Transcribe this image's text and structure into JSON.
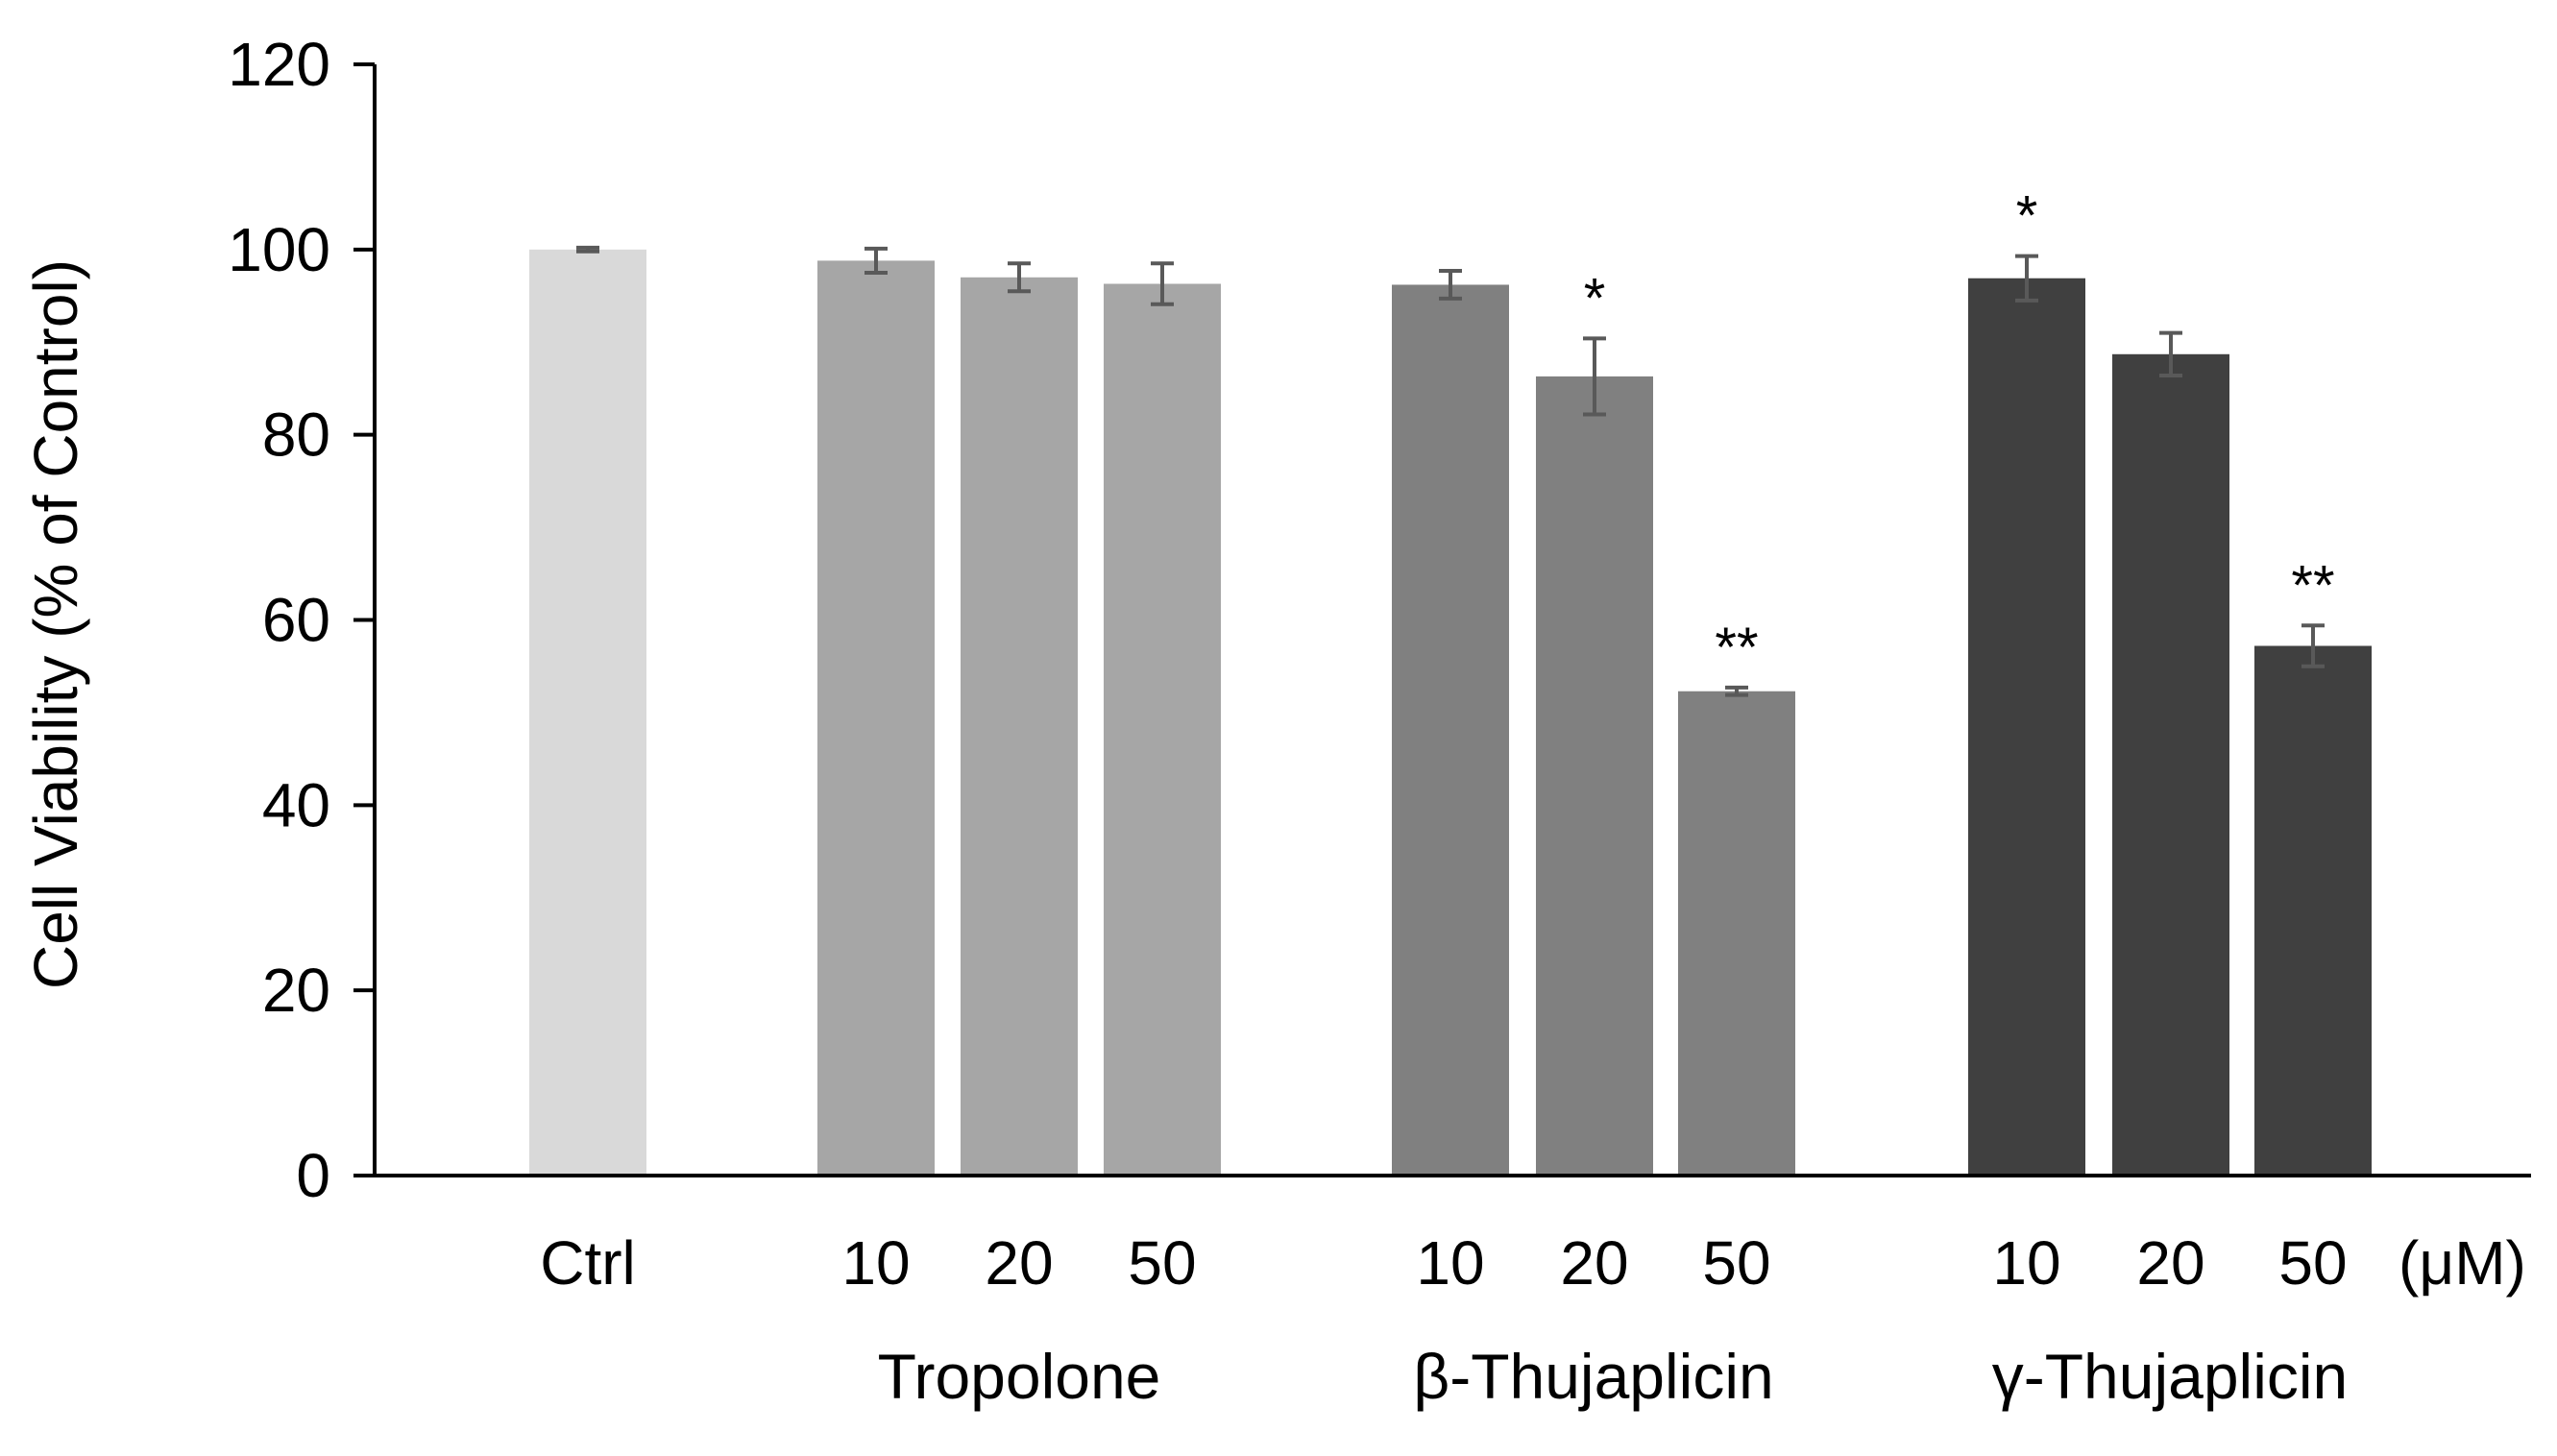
{
  "chart_data": {
    "type": "bar",
    "title": "",
    "xlabel": "",
    "ylabel": "Cell Viability (% of Control)",
    "ylim": [
      0,
      120
    ],
    "yticks": [
      0,
      20,
      40,
      60,
      80,
      100,
      120
    ],
    "grid": false,
    "unit_label": "(μM)",
    "groups": [
      {
        "name": "Ctrl",
        "label": "",
        "color": "#d9d9d9",
        "bars": [
          {
            "category": "Ctrl",
            "value": 100,
            "error": 0.2,
            "significance": ""
          }
        ]
      },
      {
        "name": "Tropolone",
        "label": "Tropolone",
        "color": "#a6a6a6",
        "bars": [
          {
            "category": "10",
            "value": 98.8,
            "error": 1.3,
            "significance": ""
          },
          {
            "category": "20",
            "value": 97.0,
            "error": 1.5,
            "significance": ""
          },
          {
            "category": "50",
            "value": 96.3,
            "error": 2.2,
            "significance": ""
          }
        ]
      },
      {
        "name": "β-Thujaplicin",
        "label": "β-Thujaplicin",
        "color": "#808080",
        "bars": [
          {
            "category": "10",
            "value": 96.2,
            "error": 1.5,
            "significance": ""
          },
          {
            "category": "20",
            "value": 86.3,
            "error": 4.1,
            "significance": "*"
          },
          {
            "category": "50",
            "value": 52.3,
            "error": 0.4,
            "significance": "**"
          }
        ]
      },
      {
        "name": "γ-Thujaplicin",
        "label": "γ-Thujaplicin",
        "color": "#404040",
        "bars": [
          {
            "category": "10",
            "value": 96.9,
            "error": 2.4,
            "significance": "*"
          },
          {
            "category": "20",
            "value": 88.7,
            "error": 2.3,
            "significance": ""
          },
          {
            "category": "50",
            "value": 57.2,
            "error": 2.2,
            "significance": "**"
          }
        ]
      }
    ],
    "error_bar_color": "#595959",
    "axis_color": "#000000"
  }
}
